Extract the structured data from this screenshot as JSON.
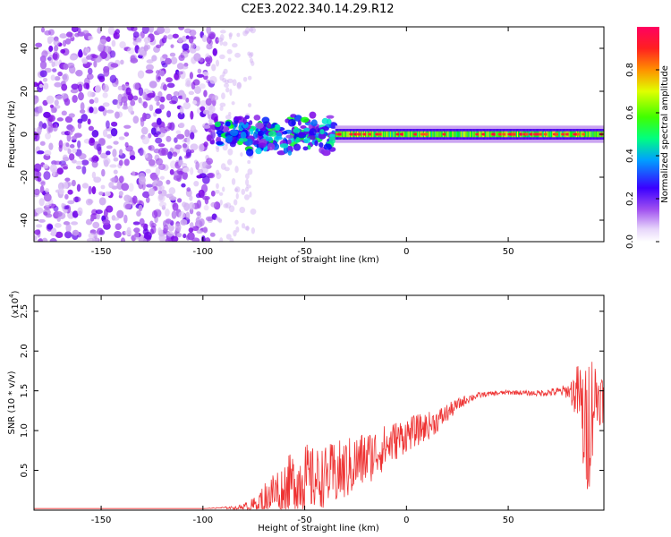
{
  "figure_title": "C2E3.2022.340.14.29.R12",
  "chart_data": [
    {
      "type": "heatmap",
      "title": "",
      "xlabel": "Height of straight line (km)",
      "ylabel": "Frequency (Hz)",
      "xlim": [
        -183,
        97
      ],
      "ylim": [
        -50,
        50
      ],
      "x_ticks": [
        -150,
        -100,
        -50,
        0,
        50
      ],
      "x_tick_labels": [
        "-150",
        "-100",
        "-50",
        "0",
        "50"
      ],
      "y_ticks": [
        -40,
        -20,
        0,
        20,
        40
      ],
      "y_tick_labels": [
        "-40",
        "-20",
        "0",
        "20",
        "40"
      ],
      "colorbar": {
        "label": "Normalized spectral amplitude",
        "range": [
          0,
          1
        ],
        "ticks": [
          0.0,
          0.2,
          0.4,
          0.6,
          0.8
        ],
        "tick_labels": [
          "0.0",
          "0.2",
          "0.4",
          "0.6",
          "0.8"
        ],
        "colormap": [
          "#ffffff",
          "#c8a0f0",
          "#7a00e6",
          "#0000ff",
          "#00e0f0",
          "#00ff00",
          "#ffff00",
          "#ff8000",
          "#ff0040"
        ]
      },
      "regions": [
        {
          "name": "noise",
          "x_range": [
            -183,
            -93
          ],
          "freq_range": [
            -50,
            50
          ],
          "amplitude": 0.1
        },
        {
          "name": "transition",
          "x_range": [
            -93,
            -75
          ],
          "freq_range": [
            -50,
            50
          ],
          "amplitude": 0.05
        },
        {
          "name": "signal_onset",
          "x_range": [
            -93,
            -35
          ],
          "freq_center": 0,
          "freq_halfwidth": 8,
          "amplitude": 0.45
        },
        {
          "name": "signal_line",
          "x_range": [
            -35,
            97
          ],
          "freq_center": 0,
          "freq_halfwidth": 2.5,
          "amplitude": 0.75
        }
      ],
      "grid": false,
      "legend": "none"
    },
    {
      "type": "line",
      "title": "",
      "xlabel": "Height of straight line (km)",
      "ylabel": "SNR (10 * v/v)",
      "y_multiplier_label": "(x10",
      "y_multiplier_exponent": "4",
      "y_multiplier_close": ")",
      "xlim": [
        -183,
        97
      ],
      "ylim": [
        0,
        2.7
      ],
      "x_ticks": [
        -150,
        -100,
        -50,
        0,
        50
      ],
      "x_tick_labels": [
        "-150",
        "-100",
        "-50",
        "0",
        "50"
      ],
      "y_ticks": [
        0.5,
        1.0,
        1.5,
        2.0,
        2.5
      ],
      "y_tick_labels": [
        "0.5",
        "1.0",
        "1.5",
        "2.0",
        "2.5"
      ],
      "series": [
        {
          "color": "#ee3333",
          "x": [
            -183,
            -150,
            -120,
            -100,
            -90,
            -85,
            -80,
            -75,
            -70,
            -65,
            -60,
            -55,
            -50,
            -45,
            -40,
            -35,
            -30,
            -25,
            -20,
            -15,
            -10,
            -5,
            0,
            5,
            10,
            15,
            20,
            25,
            30,
            35,
            40,
            45,
            50,
            55,
            60,
            65,
            70,
            75,
            80,
            85,
            88,
            90,
            92,
            94,
            97
          ],
          "values": [
            0.02,
            0.02,
            0.02,
            0.02,
            0.03,
            0.03,
            0.04,
            0.06,
            0.15,
            0.22,
            0.3,
            0.35,
            0.4,
            0.38,
            0.42,
            0.45,
            0.5,
            0.58,
            0.65,
            0.72,
            0.8,
            0.88,
            0.95,
            1.0,
            1.05,
            1.12,
            1.22,
            1.32,
            1.4,
            1.44,
            1.46,
            1.47,
            1.48,
            1.48,
            1.47,
            1.47,
            1.48,
            1.49,
            1.5,
            1.45,
            0.9,
            1.2,
            1.4,
            1.45,
            1.4
          ],
          "noise_amplitude": [
            0.0,
            0.0,
            0.0,
            0.0,
            0.01,
            0.02,
            0.04,
            0.1,
            0.2,
            0.3,
            0.35,
            0.4,
            0.45,
            0.4,
            0.38,
            0.42,
            0.4,
            0.38,
            0.35,
            0.32,
            0.28,
            0.25,
            0.22,
            0.2,
            0.18,
            0.15,
            0.12,
            0.08,
            0.06,
            0.04,
            0.03,
            0.03,
            0.03,
            0.03,
            0.03,
            0.04,
            0.05,
            0.06,
            0.1,
            0.45,
            0.9,
            0.9,
            0.6,
            0.4,
            0.3
          ]
        }
      ],
      "grid": false,
      "legend": "none"
    }
  ]
}
